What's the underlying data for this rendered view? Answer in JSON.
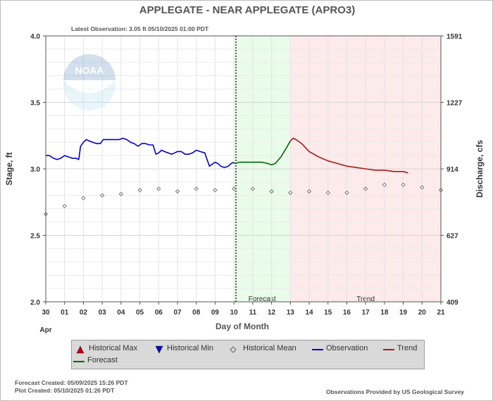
{
  "chart_data": {
    "type": "line",
    "title": "APPLEGATE - NEAR APPLEGATE  (APRO3)",
    "subtitle": "Latest Observation: 3.05 ft 05/10/2025 01:00 PDT",
    "xlabel": "Day of Month",
    "ylabel": "Stage, ft",
    "y2label": "Discharge, cfs",
    "x_ticks": [
      "30",
      "01",
      "02",
      "03",
      "04",
      "05",
      "06",
      "07",
      "08",
      "09",
      "10",
      "11",
      "12",
      "13",
      "14",
      "15",
      "16",
      "17",
      "18",
      "19",
      "20",
      "21"
    ],
    "x_month_label": "Apr",
    "xlim_days": [
      0,
      21
    ],
    "ylim": [
      2.0,
      4.0
    ],
    "y_ticks": [
      "2.0",
      "2.5",
      "3.0",
      "3.5",
      "4.0"
    ],
    "y2_ticks": [
      "409",
      "627",
      "914",
      "1227",
      "1591"
    ],
    "y2_tick_stage_positions": [
      2.0,
      2.5,
      3.0,
      3.5,
      4.0
    ],
    "grid": true,
    "legend_position": "bottom",
    "regions": [
      {
        "label": "Forecast",
        "start": 10.0,
        "end": 13.0,
        "color": "#e9fbe9"
      },
      {
        "label": "Trend",
        "start": 13.0,
        "end": 21.0,
        "color": "#fdeaea"
      }
    ],
    "series": [
      {
        "name": "Observation",
        "color": "#0000cc",
        "points": [
          [
            0,
            3.1
          ],
          [
            0.2,
            3.1
          ],
          [
            0.4,
            3.08
          ],
          [
            0.6,
            3.07
          ],
          [
            0.8,
            3.08
          ],
          [
            1.0,
            3.1
          ],
          [
            1.2,
            3.09
          ],
          [
            1.4,
            3.08
          ],
          [
            1.6,
            3.08
          ],
          [
            1.75,
            3.07
          ],
          [
            1.85,
            3.17
          ],
          [
            2.0,
            3.2
          ],
          [
            2.15,
            3.22
          ],
          [
            2.3,
            3.21
          ],
          [
            2.5,
            3.2
          ],
          [
            2.7,
            3.19
          ],
          [
            2.9,
            3.19
          ],
          [
            3.05,
            3.22
          ],
          [
            3.3,
            3.22
          ],
          [
            3.6,
            3.22
          ],
          [
            3.9,
            3.22
          ],
          [
            4.1,
            3.23
          ],
          [
            4.3,
            3.22
          ],
          [
            4.5,
            3.2
          ],
          [
            4.7,
            3.19
          ],
          [
            4.9,
            3.17
          ],
          [
            5.1,
            3.19
          ],
          [
            5.3,
            3.19
          ],
          [
            5.5,
            3.18
          ],
          [
            5.7,
            3.18
          ],
          [
            5.85,
            3.11
          ],
          [
            6.0,
            3.12
          ],
          [
            6.15,
            3.14
          ],
          [
            6.3,
            3.13
          ],
          [
            6.5,
            3.12
          ],
          [
            6.7,
            3.11
          ],
          [
            6.85,
            3.12
          ],
          [
            7.0,
            3.13
          ],
          [
            7.2,
            3.13
          ],
          [
            7.4,
            3.11
          ],
          [
            7.6,
            3.11
          ],
          [
            7.8,
            3.12
          ],
          [
            8.0,
            3.14
          ],
          [
            8.2,
            3.13
          ],
          [
            8.45,
            3.12
          ],
          [
            8.6,
            3.06
          ],
          [
            8.7,
            3.02
          ],
          [
            8.9,
            3.04
          ],
          [
            9.0,
            3.05
          ],
          [
            9.15,
            3.04
          ],
          [
            9.3,
            3.02
          ],
          [
            9.5,
            3.01
          ],
          [
            9.7,
            3.02
          ],
          [
            9.85,
            3.04
          ],
          [
            10.0,
            3.05
          ]
        ]
      },
      {
        "name": "Forecast",
        "color": "#006600",
        "points": [
          [
            10.0,
            3.04
          ],
          [
            10.3,
            3.05
          ],
          [
            10.6,
            3.05
          ],
          [
            11.0,
            3.05
          ],
          [
            11.5,
            3.05
          ],
          [
            11.8,
            3.04
          ],
          [
            12.0,
            3.03
          ],
          [
            12.2,
            3.04
          ],
          [
            12.5,
            3.09
          ],
          [
            12.8,
            3.16
          ],
          [
            13.0,
            3.21
          ]
        ]
      },
      {
        "name": "Trend",
        "color": "#aa1a1a",
        "points": [
          [
            13.0,
            3.21
          ],
          [
            13.15,
            3.23
          ],
          [
            13.3,
            3.22
          ],
          [
            13.6,
            3.19
          ],
          [
            14.0,
            3.13
          ],
          [
            14.5,
            3.09
          ],
          [
            15.0,
            3.06
          ],
          [
            15.5,
            3.04
          ],
          [
            16.0,
            3.02
          ],
          [
            16.5,
            3.01
          ],
          [
            17.0,
            3.0
          ],
          [
            17.5,
            2.99
          ],
          [
            18.0,
            2.99
          ],
          [
            18.5,
            2.98
          ],
          [
            19.0,
            2.98
          ],
          [
            19.25,
            2.97
          ]
        ]
      }
    ],
    "historical_mean": {
      "name": "Historical Mean",
      "points": [
        [
          0,
          2.66
        ],
        [
          1,
          2.72
        ],
        [
          2,
          2.78
        ],
        [
          3,
          2.8
        ],
        [
          4,
          2.81
        ],
        [
          5,
          2.84
        ],
        [
          6,
          2.85
        ],
        [
          7,
          2.83
        ],
        [
          8,
          2.85
        ],
        [
          9,
          2.84
        ],
        [
          10,
          2.85
        ],
        [
          11,
          2.85
        ],
        [
          12,
          2.83
        ],
        [
          13,
          2.82
        ],
        [
          14,
          2.83
        ],
        [
          15,
          2.82
        ],
        [
          16,
          2.82
        ],
        [
          17,
          2.85
        ],
        [
          18,
          2.88
        ],
        [
          19,
          2.88
        ],
        [
          20,
          2.86
        ],
        [
          21,
          2.84
        ]
      ]
    }
  },
  "legend": {
    "items": [
      {
        "label": "Historical Max",
        "icon": "triangle-up-icon",
        "color": "#c00000"
      },
      {
        "label": "Historical Min",
        "icon": "triangle-down-icon",
        "color": "#0000cc"
      },
      {
        "label": "Historical Mean",
        "icon": "diamond-icon",
        "color": "#666666"
      },
      {
        "label": "Observation",
        "icon": "line-icon",
        "color": "#0000cc"
      },
      {
        "label": "Trend",
        "icon": "line-icon",
        "color": "#aa1a1a"
      },
      {
        "label": "Forecast",
        "icon": "line-icon",
        "color": "#006600"
      }
    ]
  },
  "watermark": {
    "text": "NOAA"
  },
  "footer": {
    "forecast_created": "Forecast Created: 05/09/2025 15:26 PDT",
    "plot_created": "Plot Created: 05/10/2025 01:26 PDT",
    "credit": "Observations Provided by US Geological Survey"
  }
}
